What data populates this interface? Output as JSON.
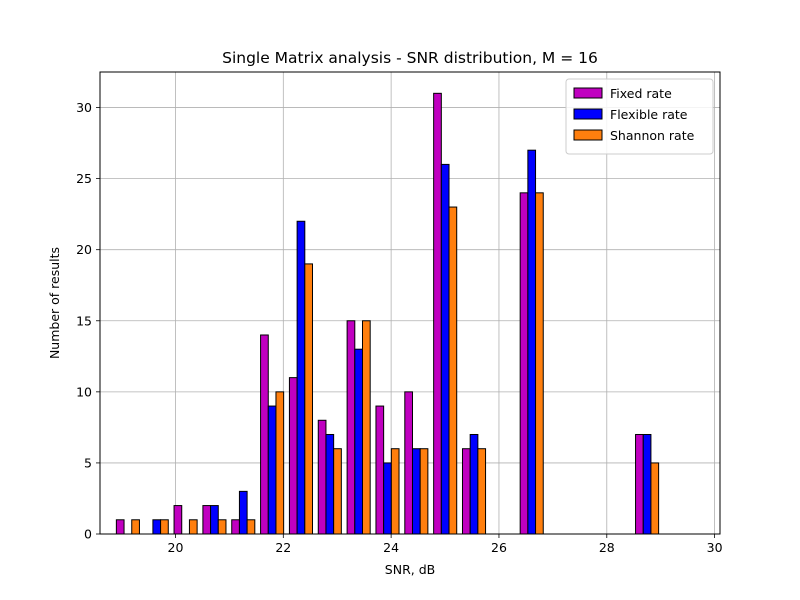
{
  "chart_data": {
    "type": "bar",
    "title": "Single Matrix analysis - SNR distribution, M = 16",
    "xlabel": "SNR, dB",
    "ylabel": "Number of results",
    "xlim": [
      18.6,
      30.1
    ],
    "ylim": [
      0,
      32.5
    ],
    "xticks": [
      20,
      22,
      24,
      26,
      28,
      30
    ],
    "yticks": [
      0,
      5,
      10,
      15,
      20,
      25,
      30
    ],
    "grid": true,
    "legend_position": "top-right",
    "bin_edges": [
      18.85,
      19.385,
      19.92,
      20.455,
      20.99,
      21.525,
      22.06,
      22.595,
      23.13,
      23.665,
      24.2,
      24.735,
      25.27,
      25.805,
      26.34,
      26.875,
      27.41,
      27.945,
      28.48,
      29.015,
      29.55
    ],
    "series": [
      {
        "name": "Fixed rate",
        "color": "#c000c0",
        "values": [
          1,
          0,
          2,
          2,
          1,
          14,
          11,
          8,
          15,
          9,
          10,
          31,
          6,
          0,
          24,
          0,
          0,
          0,
          7,
          0
        ]
      },
      {
        "name": "Flexible rate",
        "color": "#0000ff",
        "values": [
          0,
          1,
          0,
          2,
          3,
          9,
          22,
          7,
          13,
          5,
          6,
          26,
          7,
          0,
          27,
          0,
          0,
          0,
          7,
          0
        ]
      },
      {
        "name": "Shannon rate",
        "color": "#ff7f0e",
        "values": [
          1,
          1,
          1,
          1,
          1,
          10,
          19,
          6,
          15,
          6,
          6,
          23,
          6,
          0,
          24,
          0,
          0,
          0,
          5,
          0
        ]
      }
    ]
  }
}
